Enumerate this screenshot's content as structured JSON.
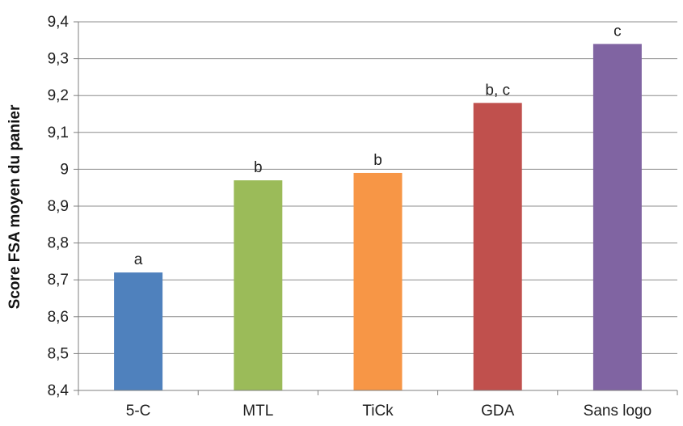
{
  "chart_data": {
    "type": "bar",
    "categories": [
      "5-C",
      "MTL",
      "TiCk",
      "GDA",
      "Sans logo"
    ],
    "values": [
      8.72,
      8.97,
      8.99,
      9.18,
      9.34
    ],
    "significance_labels": [
      "a",
      "b",
      "b",
      "b, c",
      "c"
    ],
    "colors": [
      "#4f81bd",
      "#9bbb59",
      "#f79646",
      "#c0504d",
      "#8064a2"
    ],
    "ylabel": "Score FSA moyen du panier",
    "xlabel": "",
    "title": "",
    "ylim": [
      8.4,
      9.4
    ],
    "yticks": [
      "8,4",
      "8,5",
      "8,6",
      "8,7",
      "8,8",
      "8,9",
      "9",
      "9,1",
      "9,2",
      "9,3",
      "9,4"
    ],
    "grid": true,
    "legend": "none"
  }
}
